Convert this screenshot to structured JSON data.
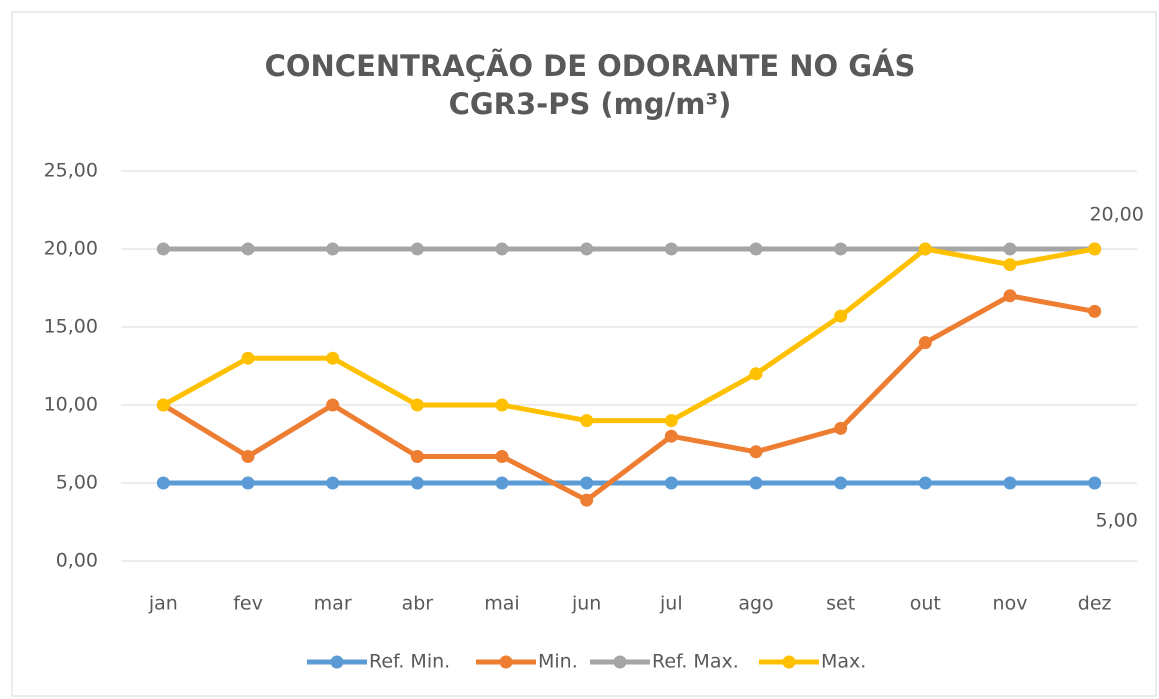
{
  "chart_data": {
    "type": "line",
    "title": "CONCENTRAÇÃO DE ODORANTE NO GÁS",
    "subtitle": "CGR3-PS (mg/m³)",
    "categories": [
      "jan",
      "fev",
      "mar",
      "abr",
      "mai",
      "jun",
      "jul",
      "ago",
      "set",
      "out",
      "nov",
      "dez"
    ],
    "series": [
      {
        "name": "Ref. Min.",
        "color": "#5b9bd5",
        "values": [
          5,
          5,
          5,
          5,
          5,
          5,
          5,
          5,
          5,
          5,
          5,
          5
        ],
        "value_labels": [
          null,
          null,
          null,
          null,
          null,
          null,
          null,
          null,
          null,
          null,
          null,
          "5,00"
        ]
      },
      {
        "name": "Min.",
        "color": "#ed7d31",
        "values": [
          10,
          6.7,
          10,
          6.7,
          6.7,
          3.9,
          8,
          7,
          8.5,
          14,
          17,
          16
        ]
      },
      {
        "name": "Ref. Max.",
        "color": "#a5a5a5",
        "values": [
          20,
          20,
          20,
          20,
          20,
          20,
          20,
          20,
          20,
          20,
          20,
          20
        ],
        "value_labels": [
          null,
          null,
          null,
          null,
          null,
          null,
          null,
          null,
          null,
          null,
          null,
          "20,00"
        ]
      },
      {
        "name": "Max.",
        "color": "#ffc000",
        "values": [
          10,
          13,
          13,
          10,
          10,
          9,
          9,
          12,
          15.7,
          20,
          19,
          20
        ]
      }
    ],
    "ylim": [
      0,
      25
    ],
    "yticks": [
      {
        "value": 0,
        "label": "0,00"
      },
      {
        "value": 5,
        "label": "5,00"
      },
      {
        "value": 10,
        "label": "10,00"
      },
      {
        "value": 15,
        "label": "15,00"
      },
      {
        "value": 20,
        "label": "20,00"
      },
      {
        "value": 25,
        "label": "25,00"
      }
    ],
    "grid": true,
    "legend": "bottom"
  }
}
